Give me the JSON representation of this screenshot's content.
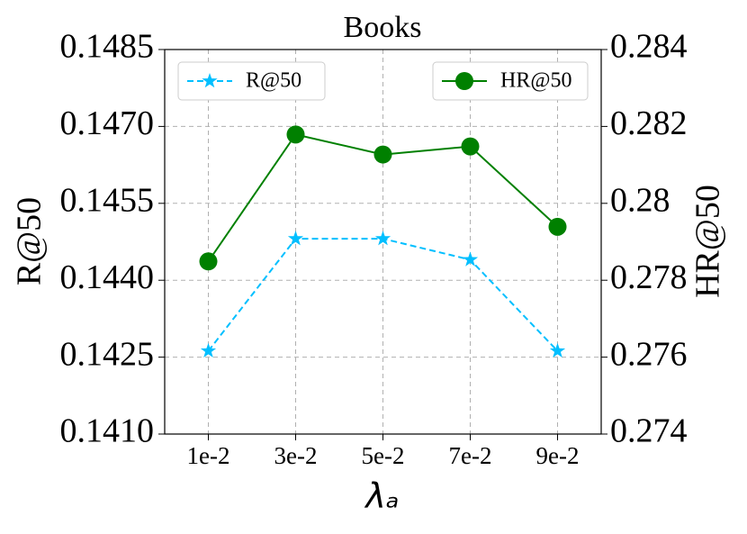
{
  "chart_data": {
    "type": "line",
    "title": "Books",
    "x_label": "λₐ",
    "y_label": "R@50",
    "y2_label": "HR@50",
    "categories": [
      "1e-2",
      "3e-2",
      "5e-2",
      "7e-2",
      "9e-2"
    ],
    "series": [
      {
        "name": "R@50",
        "color": "#00bfff",
        "linestyle": "dashed",
        "marker": "star",
        "values": [
          0.14262,
          0.14481,
          0.14481,
          0.1444,
          0.14262
        ]
      },
      {
        "name": "HR@50",
        "color": "#008000",
        "linestyle": "solid",
        "marker": "circle",
        "axis": "y2",
        "values": [
          0.27849,
          0.28179,
          0.28127,
          0.28148,
          0.27939
        ]
      }
    ],
    "ylim": [
      0.141,
      0.1485
    ],
    "yticks": [
      {
        "value": 0.141,
        "label": "0.1410"
      },
      0.1425,
      {
        "value": 0.144,
        "label": "0.1440"
      },
      0.1455,
      {
        "value": 0.147,
        "label": "0.1470"
      },
      0.1485
    ],
    "y2lim": [
      0.274,
      0.284
    ],
    "y2ticks": [
      0.274,
      0.276,
      0.278,
      0.28,
      0.282,
      0.284
    ],
    "grid": true,
    "legend_positions": [
      "upper left",
      "upper right"
    ]
  }
}
